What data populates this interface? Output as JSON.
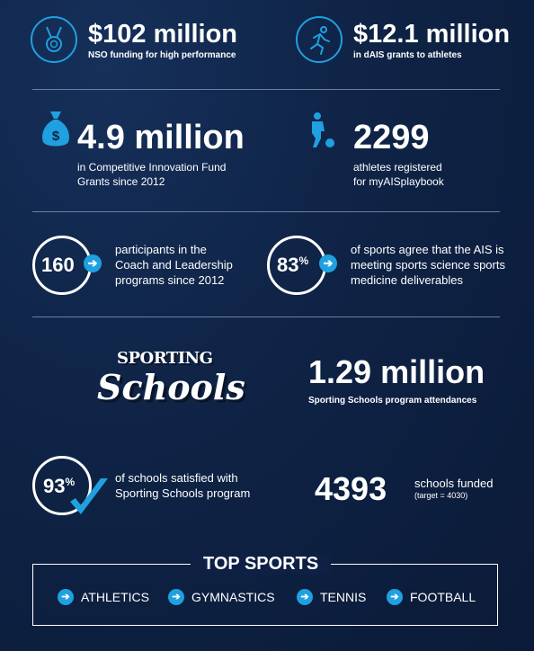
{
  "stats": {
    "nso": {
      "value": "$102 million",
      "caption": "NSO funding for high performance"
    },
    "dais": {
      "value": "$12.1 million",
      "caption": "in dAIS grants to athletes"
    },
    "cif": {
      "value": "4.9 million",
      "caption1": "in Competitive Innovation Fund",
      "caption2": "Grants since 2012"
    },
    "athletes": {
      "value": "2299",
      "caption1": "athletes registered",
      "caption2": "for myAISplaybook"
    },
    "coach": {
      "value": "160",
      "caption1": "participants in the",
      "caption2": "Coach and Leadership",
      "caption3": "programs since 2012"
    },
    "sports": {
      "value": "83",
      "suffix": "%",
      "caption1": "of sports agree that the AIS is",
      "caption2": "meeting sports science sports",
      "caption3": "medicine deliverables"
    },
    "attendances": {
      "value": "1.29 million",
      "caption": "Sporting Schools program attendances"
    },
    "satisfied": {
      "value": "93",
      "suffix": "%",
      "caption1": "of schools satisfied with",
      "caption2": "Sporting Schools program"
    },
    "funded": {
      "value": "4393",
      "caption": "schools funded",
      "target": "(target = 4030)"
    }
  },
  "logo": {
    "line1": "SPORTING",
    "line2": "Schools"
  },
  "top_sports": {
    "title": "TOP SPORTS",
    "items": [
      "ATHLETICS",
      "GYMNASTICS",
      "TENNIS",
      "FOOTBALL"
    ]
  },
  "colors": {
    "accent": "#1fa0e0",
    "background": "#0f2447"
  }
}
